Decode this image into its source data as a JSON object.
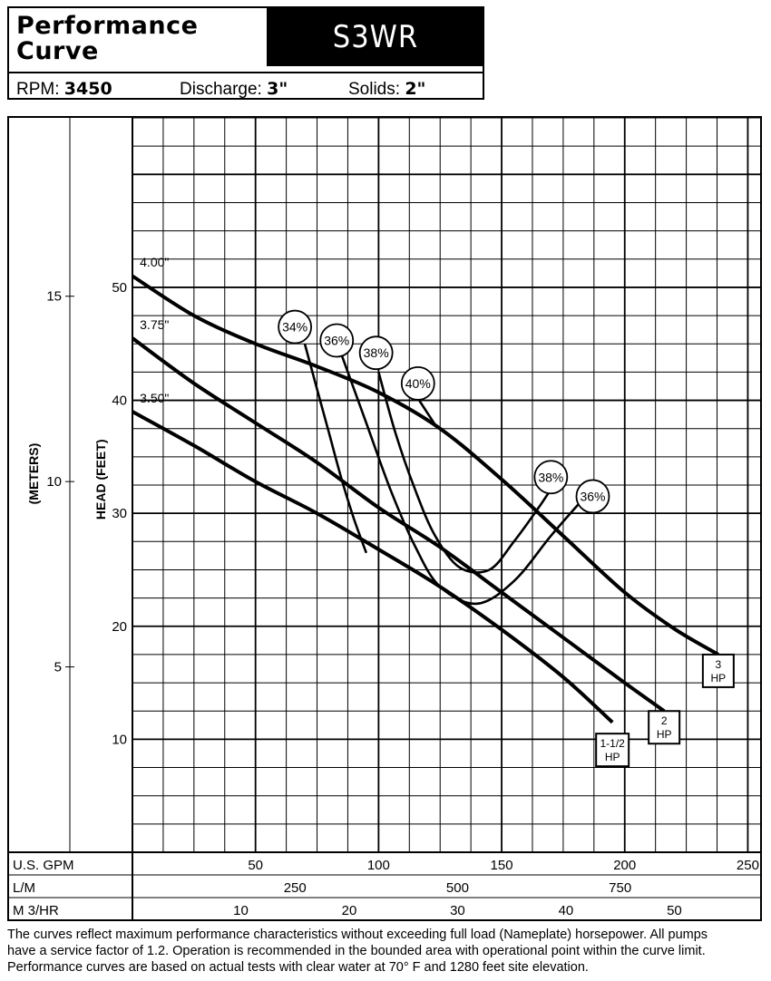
{
  "header": {
    "title_line1": "Performance",
    "title_line2": "Curve",
    "model": "S3WR",
    "rpm_label": "RPM:",
    "rpm_value": "3450",
    "discharge_label": "Discharge:",
    "discharge_value": "3\"",
    "solids_label": "Solids:",
    "solids_value": "2\""
  },
  "chart_data": {
    "type": "line",
    "title": "",
    "xlabel": "U.S. GPM",
    "ylabel": "HEAD (FEET)",
    "y2label": "(METERS)",
    "xlim": [
      0,
      255
    ],
    "ylim": [
      0,
      65
    ],
    "x_ticks": [
      50,
      100,
      150,
      200,
      250
    ],
    "y_ticks": [
      10,
      20,
      30,
      40,
      50
    ],
    "meters_ticks": [
      5,
      10,
      15
    ],
    "lm_label": "L/M",
    "lm_ticks": [
      250,
      500,
      750
    ],
    "m3_label": "M 3/HR",
    "m3_ticks": [
      10,
      20,
      30,
      40,
      50
    ],
    "series": [
      {
        "name": "4.00\"",
        "label": "3\nHP",
        "x": [
          0,
          25,
          50,
          75,
          100,
          125,
          150,
          175,
          200,
          220,
          238
        ],
        "y": [
          51,
          47.5,
          45,
          43,
          40.7,
          37.5,
          33,
          28,
          23,
          19.8,
          17.5
        ]
      },
      {
        "name": "3.75\"",
        "label": "2\nHP",
        "x": [
          0,
          25,
          50,
          75,
          100,
          125,
          150,
          175,
          200,
          216
        ],
        "y": [
          45.5,
          41.5,
          38,
          34.5,
          30.5,
          27,
          23,
          19,
          15,
          12.5
        ]
      },
      {
        "name": "3.50\"",
        "label": "1-1/2\nHP",
        "x": [
          0,
          25,
          50,
          75,
          100,
          125,
          150,
          175,
          195
        ],
        "y": [
          39,
          36,
          32.8,
          30,
          26.8,
          23.5,
          19.7,
          15.5,
          11.5
        ]
      }
    ],
    "efficiency_curves": [
      {
        "label": "34%",
        "x": [
          70,
          75,
          80,
          85,
          90,
          95
        ],
        "y": [
          45,
          41,
          37,
          33,
          29.5,
          26.5
        ]
      },
      {
        "label": "36%",
        "x": [
          85,
          95,
          105,
          115,
          125,
          140,
          155,
          170,
          182
        ],
        "y": [
          44,
          38,
          32,
          27,
          23.5,
          22,
          24,
          28,
          31
        ]
      },
      {
        "label": "38%",
        "x": [
          100,
          107,
          115,
          123,
          133,
          145,
          155,
          165,
          172
        ],
        "y": [
          42.5,
          37,
          32,
          28,
          25.2,
          25,
          27.5,
          30.5,
          32.8
        ]
      },
      {
        "label": "40%",
        "x": [
          115,
          124
        ],
        "y": [
          40.5,
          37.5
        ]
      }
    ],
    "efficiency_labels": [
      {
        "text": "34%",
        "x": 66,
        "y": 46.5
      },
      {
        "text": "36%",
        "x": 83,
        "y": 45.3
      },
      {
        "text": "38%",
        "x": 99,
        "y": 44.2
      },
      {
        "text": "40%",
        "x": 116,
        "y": 41.5
      },
      {
        "text": "38%",
        "x": 170,
        "y": 33.2
      },
      {
        "text": "36%",
        "x": 187,
        "y": 31.5
      }
    ],
    "impeller_labels": [
      {
        "text": "4.00\"",
        "x": 3,
        "y": 51.5
      },
      {
        "text": "3.75\"",
        "x": 3,
        "y": 46
      },
      {
        "text": "3.50\"",
        "x": 3,
        "y": 39.5
      }
    ],
    "hp_labels": [
      {
        "text": "3",
        "text2": "HP",
        "x": 238,
        "y": 17.5
      },
      {
        "text": "2",
        "text2": "HP",
        "x": 216,
        "y": 12.5
      },
      {
        "text": "1-1/2",
        "text2": "HP",
        "x": 195,
        "y": 10.5
      }
    ]
  },
  "footer": {
    "line1": "The curves reflect maximum performance characteristics without exceeding full load (Nameplate) horsepower. All pumps",
    "line2": "have a service factor of 1.2. Operation is recommended in the bounded area with operational point within the curve limit.",
    "line3": "Performance curves are based on actual tests with clear water at 70° F and 1280 feet site elevation."
  }
}
